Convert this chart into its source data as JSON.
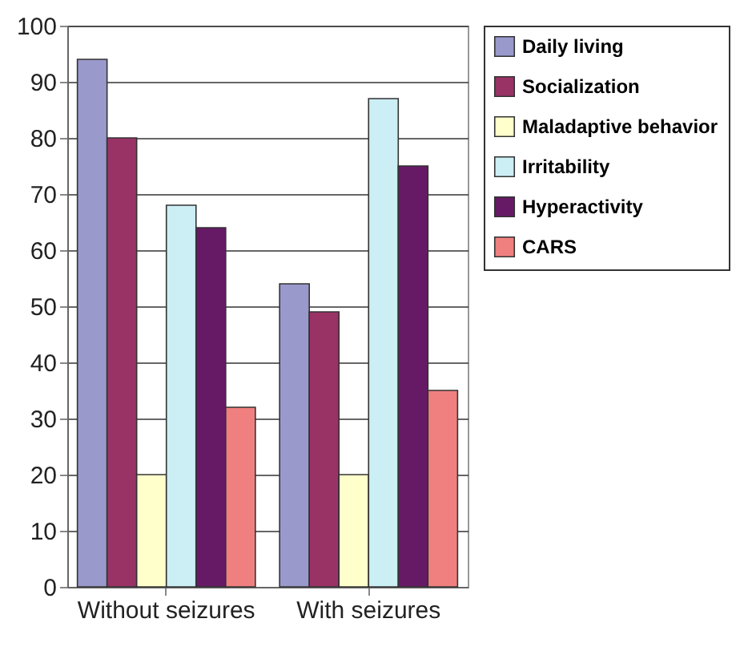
{
  "chart_data": {
    "type": "bar",
    "categories": [
      "Without seizures",
      "With seizures"
    ],
    "series": [
      {
        "name": "Daily living",
        "color": "#9999cc",
        "values": [
          94,
          54
        ]
      },
      {
        "name": "Socialization",
        "color": "#993366",
        "values": [
          80,
          49
        ]
      },
      {
        "name": "Maladaptive behavior",
        "color": "#ffffcc",
        "values": [
          20,
          20
        ]
      },
      {
        "name": "Irritability",
        "color": "#cceef5",
        "values": [
          68,
          87
        ]
      },
      {
        "name": "Hyperactivity",
        "color": "#661a66",
        "values": [
          64,
          75
        ]
      },
      {
        "name": "CARS",
        "color": "#f08080",
        "values": [
          32,
          35
        ]
      }
    ],
    "ylim": [
      0,
      100
    ],
    "yticks": [
      0,
      10,
      20,
      30,
      40,
      50,
      60,
      70,
      80,
      90,
      100
    ],
    "grid": "y",
    "legend": "top right"
  }
}
